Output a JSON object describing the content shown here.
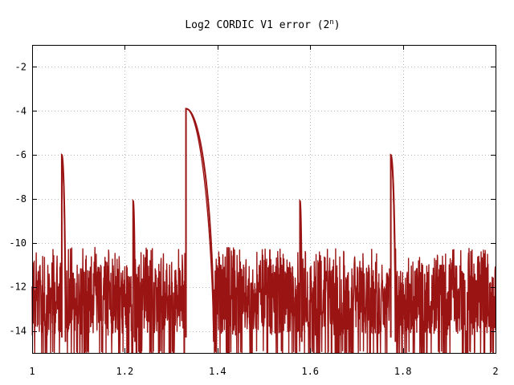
{
  "chart_data": {
    "type": "line",
    "title_main": "Log2 CORDIC V1 error (2",
    "title_sup": "n",
    "title_close": ")",
    "xlabel": "",
    "ylabel": "",
    "xlim": [
      1,
      2
    ],
    "ylim": [
      -15,
      -1
    ],
    "x_ticks": [
      1,
      1.2,
      1.4,
      1.6,
      1.8,
      2
    ],
    "x_tick_labels": [
      "1",
      "1.2",
      "1.4",
      "1.6",
      "1.8",
      "2"
    ],
    "y_ticks": [
      -2,
      -4,
      -6,
      -8,
      -10,
      -12,
      -14
    ],
    "y_tick_labels": [
      "-2",
      "-4",
      "-6",
      "-8",
      "-10",
      "-12",
      "-14"
    ],
    "grid": true,
    "legend": "none",
    "line_color": "#9b1414",
    "noise_band": [
      -14.4,
      -10.2
    ],
    "gaps": [
      [
        1.062,
        1.07
      ],
      [
        1.33,
        1.39
      ],
      [
        1.772,
        1.778
      ]
    ],
    "peaks": [
      {
        "x_start": 1.064,
        "x_end": 1.072,
        "y_top": -6.0
      },
      {
        "x_start": 1.218,
        "x_end": 1.222,
        "y_top": -8.1
      },
      {
        "x_start": 1.332,
        "x_end": 1.392,
        "y_top": -3.9
      },
      {
        "x_start": 1.578,
        "x_end": 1.582,
        "y_top": -8.1
      },
      {
        "x_start": 1.774,
        "x_end": 1.784,
        "y_top": -6.0
      }
    ]
  }
}
